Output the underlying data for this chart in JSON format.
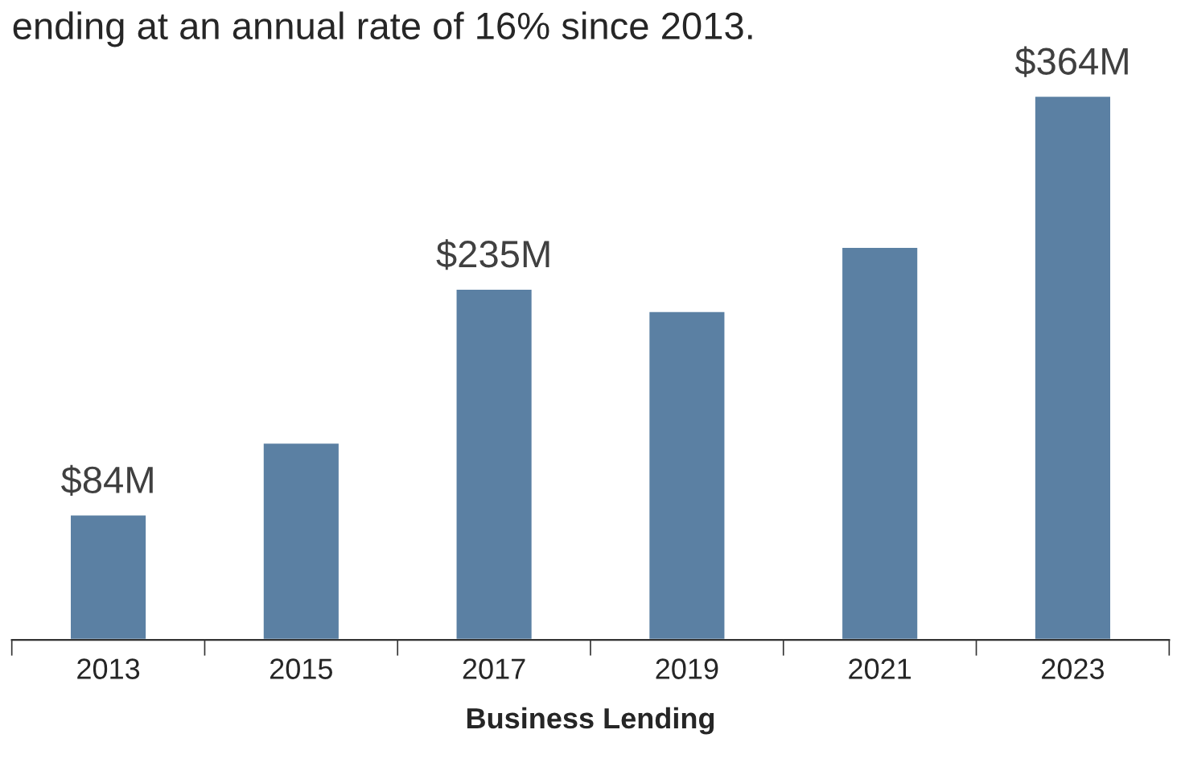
{
  "chart_data": {
    "type": "bar",
    "title": "ending at an annual rate of 16% since 2013.",
    "xlabel": "Business Lending",
    "categories": [
      "2013",
      "2015",
      "2017",
      "2019",
      "2021",
      "2023"
    ],
    "values": [
      84,
      132,
      235,
      220,
      263,
      364
    ],
    "value_labels": [
      "$84M",
      null,
      "$235M",
      null,
      null,
      "$364M"
    ],
    "color": "#5b80a3",
    "grid": false,
    "legend": false
  }
}
